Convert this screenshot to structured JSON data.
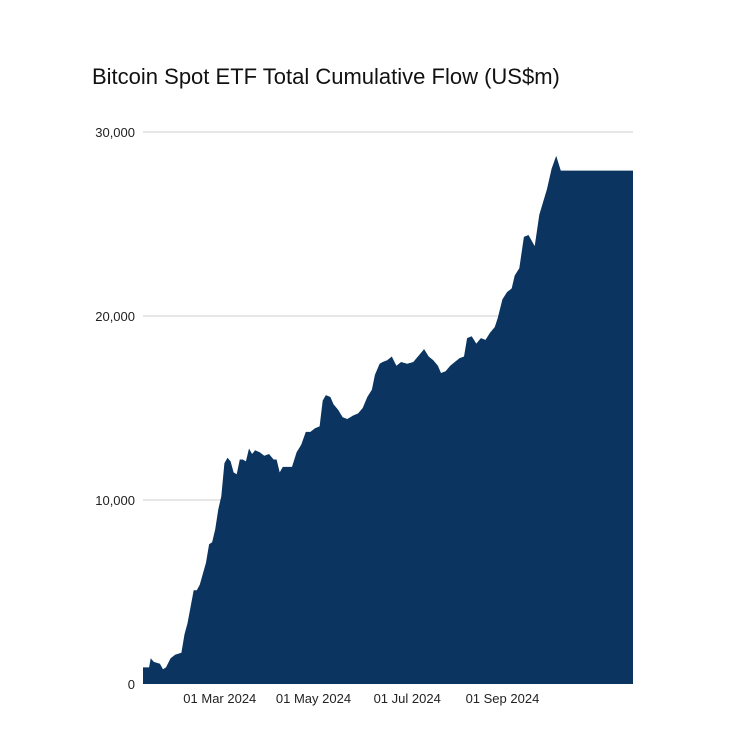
{
  "chart_data": {
    "type": "area",
    "title": "Bitcoin Spot ETF Total Cumulative Flow (US$m)",
    "xlabel": "",
    "ylabel": "",
    "ylim": [
      0,
      30000
    ],
    "y_ticks": [
      {
        "value": 0,
        "label": "0"
      },
      {
        "value": 10000,
        "label": "10,000"
      },
      {
        "value": 20000,
        "label": "20,000"
      },
      {
        "value": 30000,
        "label": "30,000"
      }
    ],
    "x_range": [
      "2024-01-11",
      "2024-11-25"
    ],
    "x_ticks": [
      {
        "date": "2024-03-01",
        "label": "01 Mar 2024"
      },
      {
        "date": "2024-05-01",
        "label": "01 May 2024"
      },
      {
        "date": "2024-07-01",
        "label": "01 Jul 2024"
      },
      {
        "date": "2024-09-01",
        "label": "01 Sep 2024"
      }
    ],
    "grid": true,
    "color": "#0b3560",
    "series": [
      {
        "name": "Total Cumulative Flow",
        "points": [
          [
            "2024-01-11",
            900
          ],
          [
            "2024-01-15",
            900
          ],
          [
            "2024-01-16",
            1400
          ],
          [
            "2024-01-18",
            1200
          ],
          [
            "2024-01-22",
            1100
          ],
          [
            "2024-01-24",
            800
          ],
          [
            "2024-01-26",
            900
          ],
          [
            "2024-01-29",
            1400
          ],
          [
            "2024-02-01",
            1600
          ],
          [
            "2024-02-05",
            1700
          ],
          [
            "2024-02-07",
            2700
          ],
          [
            "2024-02-09",
            3300
          ],
          [
            "2024-02-11",
            4200
          ],
          [
            "2024-02-13",
            5100
          ],
          [
            "2024-02-15",
            5100
          ],
          [
            "2024-02-17",
            5400
          ],
          [
            "2024-02-19",
            6000
          ],
          [
            "2024-02-21",
            6600
          ],
          [
            "2024-02-23",
            7600
          ],
          [
            "2024-02-25",
            7700
          ],
          [
            "2024-02-27",
            8400
          ],
          [
            "2024-02-29",
            9500
          ],
          [
            "2024-03-02",
            10200
          ],
          [
            "2024-03-04",
            12000
          ],
          [
            "2024-03-06",
            12300
          ],
          [
            "2024-03-08",
            12100
          ],
          [
            "2024-03-10",
            11500
          ],
          [
            "2024-03-12",
            11400
          ],
          [
            "2024-03-14",
            12200
          ],
          [
            "2024-03-16",
            12200
          ],
          [
            "2024-03-18",
            12100
          ],
          [
            "2024-03-20",
            12800
          ],
          [
            "2024-03-22",
            12500
          ],
          [
            "2024-03-24",
            12700
          ],
          [
            "2024-03-27",
            12600
          ],
          [
            "2024-03-30",
            12400
          ],
          [
            "2024-04-02",
            12500
          ],
          [
            "2024-04-05",
            12200
          ],
          [
            "2024-04-07",
            12200
          ],
          [
            "2024-04-09",
            11500
          ],
          [
            "2024-04-11",
            11800
          ],
          [
            "2024-04-14",
            11800
          ],
          [
            "2024-04-17",
            11800
          ],
          [
            "2024-04-20",
            12600
          ],
          [
            "2024-04-23",
            13000
          ],
          [
            "2024-04-26",
            13700
          ],
          [
            "2024-04-29",
            13700
          ],
          [
            "2024-05-02",
            13900
          ],
          [
            "2024-05-05",
            14000
          ],
          [
            "2024-05-07",
            15400
          ],
          [
            "2024-05-09",
            15700
          ],
          [
            "2024-05-12",
            15600
          ],
          [
            "2024-05-14",
            15200
          ],
          [
            "2024-05-17",
            14900
          ],
          [
            "2024-05-20",
            14500
          ],
          [
            "2024-05-23",
            14400
          ],
          [
            "2024-05-27",
            14600
          ],
          [
            "2024-05-30",
            14700
          ],
          [
            "2024-06-02",
            15000
          ],
          [
            "2024-06-05",
            15600
          ],
          [
            "2024-06-08",
            16000
          ],
          [
            "2024-06-10",
            16800
          ],
          [
            "2024-06-13",
            17400
          ],
          [
            "2024-06-15",
            17500
          ],
          [
            "2024-06-18",
            17600
          ],
          [
            "2024-06-21",
            17800
          ],
          [
            "2024-06-24",
            17300
          ],
          [
            "2024-06-27",
            17500
          ],
          [
            "2024-07-01",
            17400
          ],
          [
            "2024-07-05",
            17500
          ],
          [
            "2024-07-09",
            17900
          ],
          [
            "2024-07-12",
            18200
          ],
          [
            "2024-07-15",
            17800
          ],
          [
            "2024-07-18",
            17600
          ],
          [
            "2024-07-21",
            17300
          ],
          [
            "2024-07-23",
            16900
          ],
          [
            "2024-07-26",
            17000
          ],
          [
            "2024-07-29",
            17300
          ],
          [
            "2024-08-01",
            17500
          ],
          [
            "2024-08-04",
            17700
          ],
          [
            "2024-08-07",
            17800
          ],
          [
            "2024-08-09",
            18800
          ],
          [
            "2024-08-12",
            18900
          ],
          [
            "2024-08-15",
            18500
          ],
          [
            "2024-08-18",
            18800
          ],
          [
            "2024-08-21",
            18700
          ],
          [
            "2024-08-24",
            19100
          ],
          [
            "2024-08-27",
            19400
          ],
          [
            "2024-08-29",
            19900
          ],
          [
            "2024-09-01",
            20900
          ],
          [
            "2024-09-04",
            21300
          ],
          [
            "2024-09-07",
            21500
          ],
          [
            "2024-09-09",
            22200
          ],
          [
            "2024-09-12",
            22600
          ],
          [
            "2024-09-15",
            24300
          ],
          [
            "2024-09-18",
            24400
          ],
          [
            "2024-09-22",
            23800
          ],
          [
            "2024-09-25",
            25500
          ],
          [
            "2024-09-30",
            26900
          ],
          [
            "2024-10-03",
            28000
          ],
          [
            "2024-10-06",
            28700
          ],
          [
            "2024-10-09",
            27900
          ]
        ]
      }
    ]
  }
}
